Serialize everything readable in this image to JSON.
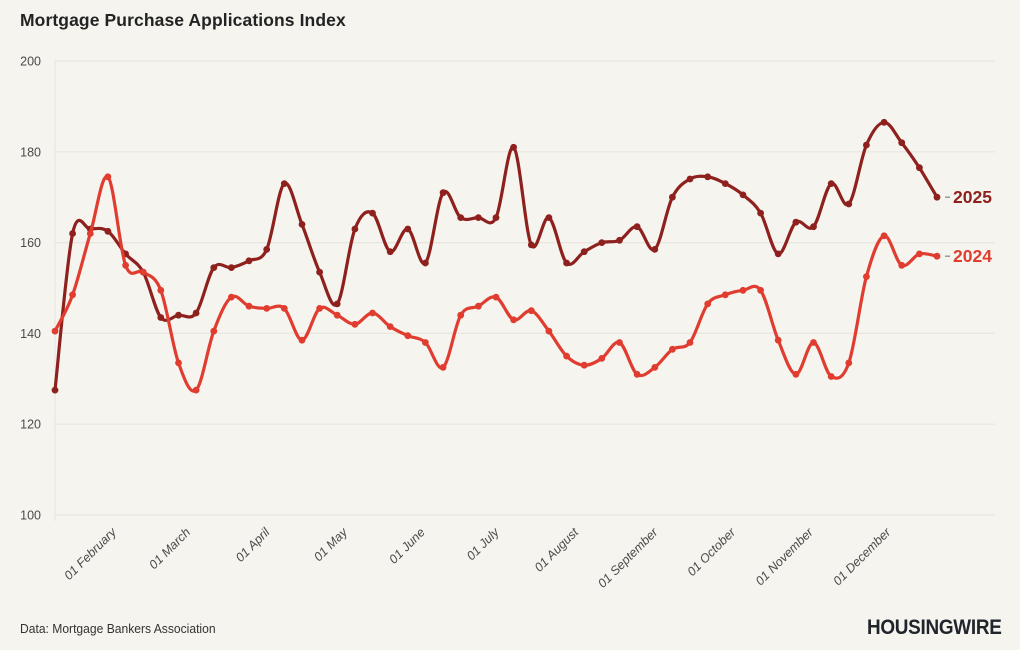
{
  "title": "Mortgage Purchase Applications Index",
  "footer": {
    "source": "Data: Mortgage Bankers Association",
    "brand": "HOUSINGWIRE"
  },
  "colors": {
    "background": "#f5f4ef",
    "grid": "#e8e6df",
    "axis_text": "#4a4a4a",
    "title_text": "#232323",
    "series_2025": "#8e211e",
    "series_2024": "#e03d30",
    "end_tick": "#999999"
  },
  "chart_data": {
    "type": "line",
    "title": "Mortgage Purchase Applications Index",
    "x_unit": "weekly readings, January through December",
    "ylim": [
      100,
      200
    ],
    "y_ticks": [
      200,
      180,
      160,
      140,
      120,
      100
    ],
    "grid": "horizontal",
    "legend_position": "line-end-labels",
    "x_ticks": [
      {
        "label": "01 February",
        "week": 3.0
      },
      {
        "label": "01 March",
        "week": 7.2
      },
      {
        "label": "01 April",
        "week": 11.7
      },
      {
        "label": "01 May",
        "week": 16.1
      },
      {
        "label": "01 June",
        "week": 20.5
      },
      {
        "label": "01 July",
        "week": 24.7
      },
      {
        "label": "01 August",
        "week": 29.2
      },
      {
        "label": "01 September",
        "week": 33.7
      },
      {
        "label": "01 October",
        "week": 38.1
      },
      {
        "label": "01 November",
        "week": 42.5
      },
      {
        "label": "01 December",
        "week": 46.9
      }
    ],
    "series": [
      {
        "name": "2025",
        "color": "#8e211e",
        "values": [
          127.5,
          162,
          163,
          162.5,
          157.5,
          153.5,
          143.5,
          144,
          144.5,
          154.5,
          154.5,
          156,
          158.5,
          173,
          164,
          153.5,
          146.5,
          163,
          166.5,
          158,
          163,
          155.5,
          171,
          165.5,
          165.5,
          165.5,
          181,
          159.5,
          165.5,
          155.5,
          158,
          160,
          160.5,
          163.5,
          158.5,
          170,
          174,
          174.5,
          173,
          170.5,
          166.5,
          157.5,
          164.5,
          163.5,
          173,
          168.5,
          181.5,
          186.5,
          182,
          176.5,
          170
        ]
      },
      {
        "name": "2024",
        "color": "#e03d30",
        "values": [
          140.5,
          148.5,
          162,
          174.5,
          155,
          153.5,
          149.5,
          133.5,
          127.5,
          140.5,
          148,
          146,
          145.5,
          145.5,
          138.5,
          145.5,
          144,
          142,
          144.5,
          141.5,
          139.5,
          138,
          132.5,
          144,
          146,
          148,
          143,
          145,
          140.5,
          135,
          133,
          134.5,
          138,
          131,
          132.5,
          136.5,
          138,
          146.5,
          148.5,
          149.5,
          149.5,
          138.5,
          131,
          138,
          130.5,
          133.5,
          152.5,
          161.5,
          155,
          157.5,
          157
        ]
      }
    ]
  }
}
